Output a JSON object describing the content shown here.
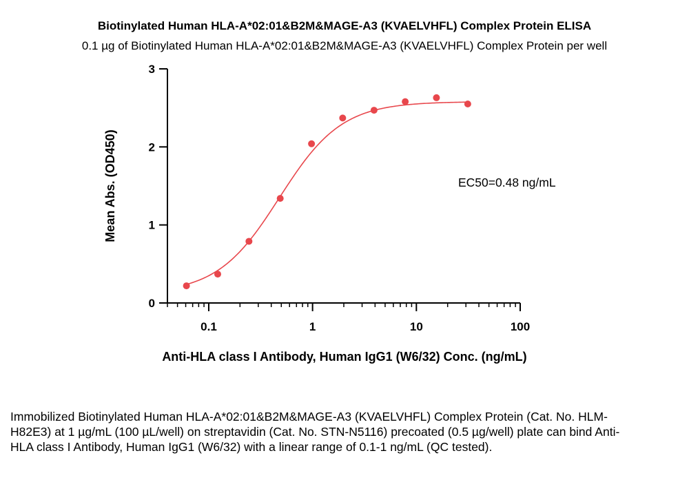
{
  "chart_data": {
    "type": "scatter",
    "title": "Biotinylated Human HLA-A*02:01&B2M&MAGE-A3 (KVAELVHFL) Complex Protein ELISA",
    "subtitle": "0.1 µg of Biotinylated Human HLA-A*02:01&B2M&MAGE-A3 (KVAELVHFL) Complex Protein per well",
    "xlabel": "Anti-HLA class I Antibody, Human IgG1 (W6/32) Conc. (ng/mL)",
    "ylabel": "Mean Abs. (OD450)",
    "xscale": "log",
    "xlim": [
      0.04,
      100
    ],
    "ylim": [
      0,
      3
    ],
    "xticks": [
      0.1,
      1,
      10,
      100
    ],
    "xtick_labels": [
      "0.1",
      "1",
      "10",
      "100"
    ],
    "yticks": [
      0,
      1,
      2,
      3
    ],
    "ytick_labels": [
      "0",
      "1",
      "2",
      "3"
    ],
    "grid": false,
    "series": [
      {
        "color": "#e8474c",
        "x": [
          0.061,
          0.122,
          0.244,
          0.488,
          0.977,
          1.95,
          3.91,
          7.81,
          15.6,
          31.25
        ],
        "y": [
          0.22,
          0.37,
          0.79,
          1.34,
          2.04,
          2.37,
          2.47,
          2.58,
          2.63,
          2.55
        ],
        "fit": "4PL sigmoid",
        "fit_params": {
          "bottom": 0.12,
          "top": 2.58,
          "ec50": 0.48,
          "hill": 1.45
        }
      }
    ],
    "annotations": [
      "EC50=0.48 ng/mL"
    ]
  },
  "caption": "Immobilized Biotinylated Human HLA-A*02:01&B2M&MAGE-A3 (KVAELVHFL) Complex Protein (Cat. No. HLM-H82E3) at 1 µg/mL (100 µL/well) on streptavidin (Cat. No. STN-N5116) precoated (0.5 µg/well) plate can bind Anti-HLA class I Antibody, Human IgG1 (W6/32) with a linear range of 0.1-1 ng/mL (QC tested)."
}
